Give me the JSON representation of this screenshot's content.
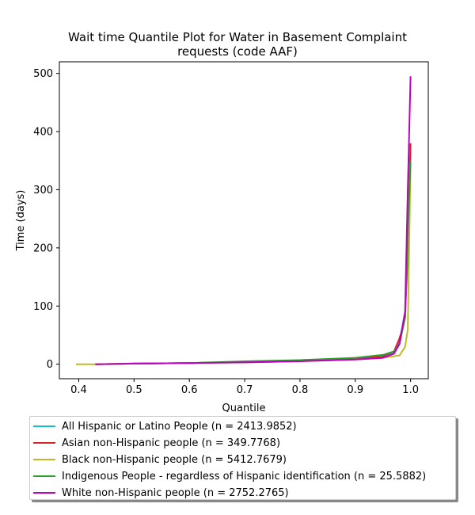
{
  "chart_data": {
    "type": "line",
    "title_lines": [
      "Wait time Quantile Plot for Water in Basement Complaint",
      "requests (code AAF)"
    ],
    "xlabel": "Quantile",
    "ylabel": "Time (days)",
    "xlim": [
      0.365,
      1.032
    ],
    "ylim": [
      -25,
      520
    ],
    "xticks": [
      0.4,
      0.5,
      0.6,
      0.7,
      0.8,
      0.9,
      1.0
    ],
    "xtick_labels": [
      "0.4",
      "0.5",
      "0.6",
      "0.7",
      "0.8",
      "0.9",
      "1.0"
    ],
    "yticks": [
      0,
      100,
      200,
      300,
      400,
      500
    ],
    "ytick_labels": [
      "0",
      "100",
      "200",
      "300",
      "400",
      "500"
    ],
    "grid": false,
    "legend_position": "below",
    "series": [
      {
        "name": "All Hispanic or Latino People (n = 2413.9852)",
        "color": "#17becf",
        "x": [
          0.43,
          0.5,
          0.6,
          0.7,
          0.8,
          0.9,
          0.95,
          0.97,
          0.98,
          0.99,
          0.995,
          1.0
        ],
        "y": [
          0,
          1,
          2,
          4,
          6,
          9,
          13,
          20,
          40,
          90,
          180,
          370
        ]
      },
      {
        "name": "Asian non-Hispanic people (n = 349.7768)",
        "color": "#d62728",
        "x": [
          0.43,
          0.5,
          0.6,
          0.7,
          0.8,
          0.9,
          0.95,
          0.97,
          0.98,
          0.985,
          0.99,
          0.995,
          1.0
        ],
        "y": [
          0,
          1,
          2,
          4,
          6,
          9,
          14,
          22,
          45,
          60,
          80,
          200,
          380
        ]
      },
      {
        "name": "Black non-Hispanic people (n = 5412.7679)",
        "color": "#bcbd22",
        "x": [
          0.395,
          0.43,
          0.5,
          0.6,
          0.7,
          0.8,
          0.9,
          0.95,
          0.98,
          0.99,
          0.995,
          1.0
        ],
        "y": [
          0,
          0,
          1,
          2,
          3,
          5,
          8,
          11,
          15,
          30,
          60,
          350
        ]
      },
      {
        "name": "Indigenous People - regardless of Hispanic identification (n = 25.5882)",
        "color": "#2ca02c",
        "x": [
          0.45,
          0.5,
          0.6,
          0.7,
          0.8,
          0.9,
          0.95,
          0.97,
          0.98,
          0.99,
          0.995,
          1.0
        ],
        "y": [
          0,
          1,
          2,
          5,
          7,
          11,
          16,
          22,
          35,
          80,
          220,
          350
        ]
      },
      {
        "name": "White non-Hispanic people (n = 2752.2765)",
        "color": "#c000c0",
        "x": [
          0.43,
          0.5,
          0.6,
          0.7,
          0.8,
          0.9,
          0.95,
          0.97,
          0.98,
          0.99,
          0.995,
          1.0
        ],
        "y": [
          0,
          1,
          2,
          3,
          5,
          8,
          11,
          18,
          35,
          90,
          300,
          495
        ]
      }
    ]
  }
}
